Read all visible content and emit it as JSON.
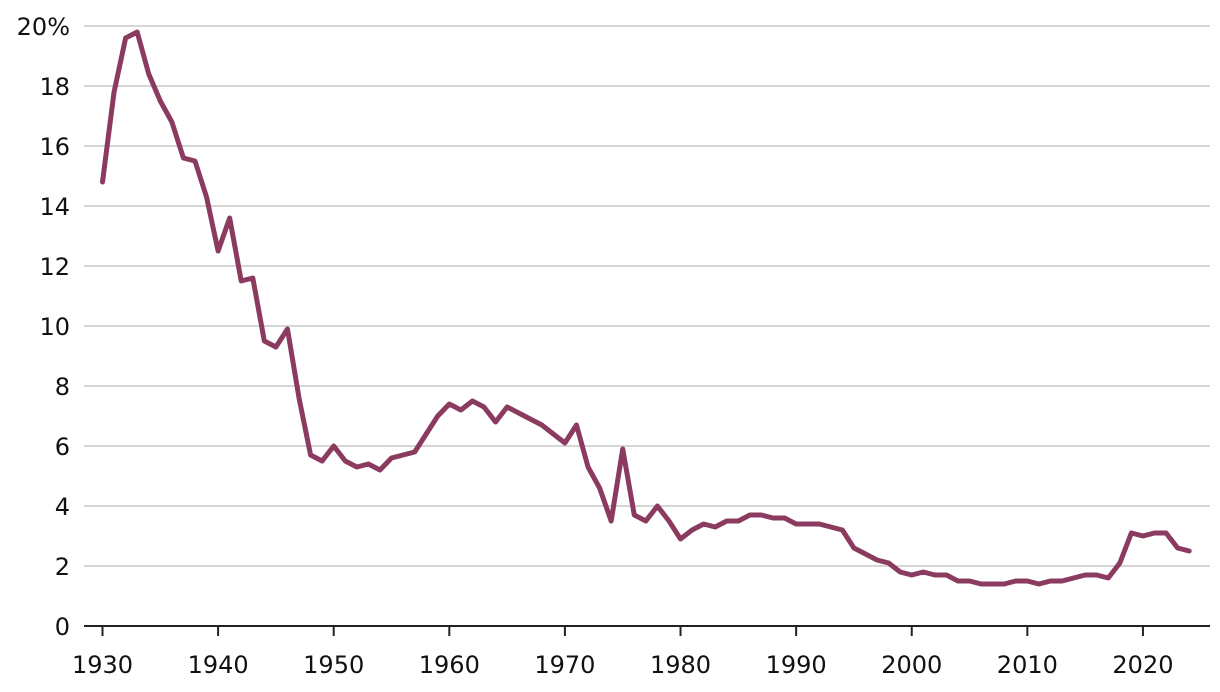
{
  "chart_data": {
    "type": "line",
    "x": [
      1930,
      1931,
      1932,
      1933,
      1934,
      1935,
      1936,
      1937,
      1938,
      1939,
      1940,
      1941,
      1942,
      1943,
      1944,
      1945,
      1946,
      1947,
      1948,
      1949,
      1950,
      1951,
      1952,
      1953,
      1954,
      1955,
      1956,
      1957,
      1958,
      1959,
      1960,
      1961,
      1962,
      1963,
      1964,
      1965,
      1966,
      1967,
      1968,
      1969,
      1970,
      1971,
      1972,
      1973,
      1974,
      1975,
      1976,
      1977,
      1978,
      1979,
      1980,
      1981,
      1982,
      1983,
      1984,
      1985,
      1986,
      1987,
      1988,
      1989,
      1990,
      1991,
      1992,
      1993,
      1994,
      1995,
      1996,
      1997,
      1998,
      1999,
      2000,
      2001,
      2002,
      2003,
      2004,
      2005,
      2006,
      2007,
      2008,
      2009,
      2010,
      2011,
      2012,
      2013,
      2014,
      2015,
      2016,
      2017,
      2018,
      2019,
      2020,
      2021,
      2022,
      2023,
      2024
    ],
    "series": [
      {
        "color": "#8a3b5f",
        "values": [
          14.8,
          17.8,
          19.6,
          19.8,
          18.4,
          17.5,
          16.8,
          15.6,
          15.5,
          14.3,
          12.5,
          13.6,
          11.5,
          11.6,
          9.5,
          9.3,
          9.9,
          7.6,
          5.7,
          5.5,
          6.0,
          5.5,
          5.3,
          5.4,
          5.2,
          5.6,
          5.7,
          5.8,
          6.4,
          7.0,
          7.4,
          7.2,
          7.5,
          7.3,
          6.8,
          7.3,
          7.1,
          6.9,
          6.7,
          6.4,
          6.1,
          6.7,
          5.3,
          4.6,
          3.5,
          5.9,
          3.7,
          3.5,
          4.0,
          3.5,
          2.9,
          3.2,
          3.4,
          3.3,
          3.5,
          3.5,
          3.7,
          3.7,
          3.6,
          3.6,
          3.4,
          3.4,
          3.4,
          3.3,
          3.2,
          2.6,
          2.4,
          2.2,
          2.1,
          1.8,
          1.7,
          1.8,
          1.7,
          1.7,
          1.5,
          1.5,
          1.4,
          1.4,
          1.4,
          1.5,
          1.5,
          1.4,
          1.5,
          1.5,
          1.6,
          1.7,
          1.7,
          1.6,
          2.1,
          3.1,
          3.0,
          3.1,
          3.1,
          2.6,
          2.5
        ]
      }
    ],
    "xlim": [
      1928.4,
      2025.8
    ],
    "xticks": [
      1930,
      1940,
      1950,
      1960,
      1970,
      1980,
      1990,
      2000,
      2010,
      2020
    ],
    "ylim": [
      0,
      20
    ],
    "yticks": [
      0,
      2,
      4,
      6,
      8,
      10,
      12,
      14,
      16,
      18,
      {
        "value": 20,
        "label": "20%"
      }
    ],
    "grid": true
  }
}
